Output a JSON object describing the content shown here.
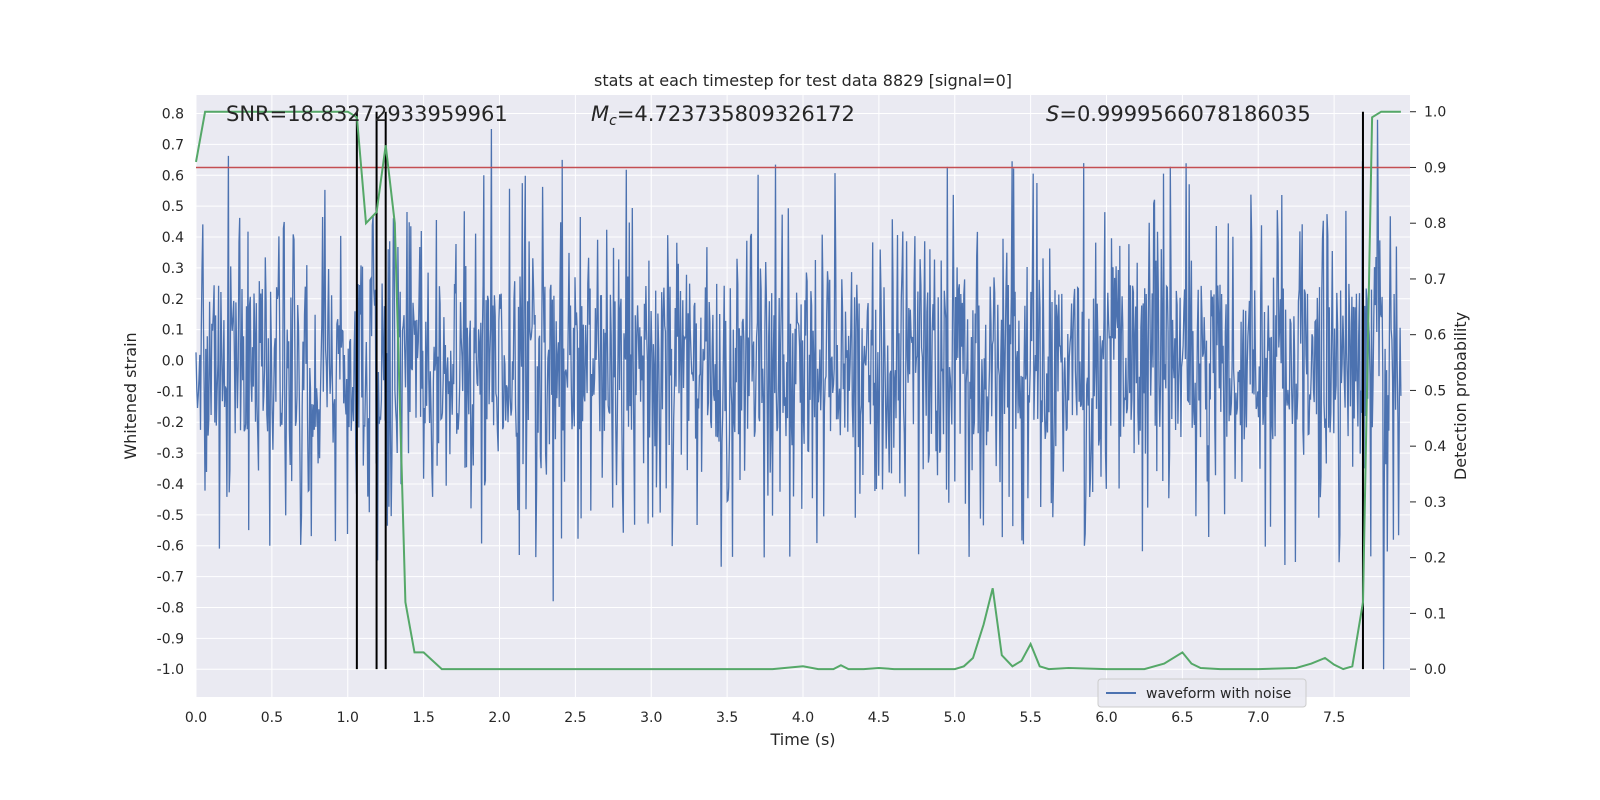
{
  "chart_data": {
    "type": "line",
    "title": "stats at each timestep for test data 8829 [signal=0]",
    "xlabel": "Time (s)",
    "ylabel": "Whitened strain",
    "y2label": "Detection probability",
    "xlim": [
      0.0,
      8.0
    ],
    "ylim": [
      -1.09,
      0.86
    ],
    "y2lim": [
      -0.05,
      1.03
    ],
    "xticks": [
      "0.0",
      "0.5",
      "1.0",
      "1.5",
      "2.0",
      "2.5",
      "3.0",
      "3.5",
      "4.0",
      "4.5",
      "5.0",
      "5.5",
      "6.0",
      "6.5",
      "7.0",
      "7.5"
    ],
    "xtick_values": [
      0.0,
      0.5,
      1.0,
      1.5,
      2.0,
      2.5,
      3.0,
      3.5,
      4.0,
      4.5,
      5.0,
      5.5,
      6.0,
      6.5,
      7.0,
      7.5
    ],
    "yticks": [
      "0.8",
      "0.7",
      "0.6",
      "0.5",
      "0.4",
      "0.3",
      "0.2",
      "0.1",
      "0.0",
      "-0.1",
      "-0.2",
      "-0.3",
      "-0.4",
      "-0.5",
      "-0.6",
      "-0.7",
      "-0.8",
      "-0.9",
      "-1.0"
    ],
    "ytick_values": [
      0.8,
      0.7,
      0.6,
      0.5,
      0.4,
      0.3,
      0.2,
      0.1,
      0.0,
      -0.1,
      -0.2,
      -0.3,
      -0.4,
      -0.5,
      -0.6,
      -0.7,
      -0.8,
      -0.9,
      -1.0
    ],
    "y2ticks": [
      "1.0",
      "0.9",
      "0.8",
      "0.7",
      "0.6",
      "0.5",
      "0.4",
      "0.3",
      "0.2",
      "0.1",
      "0.0"
    ],
    "y2tick_values": [
      1.0,
      0.9,
      0.8,
      0.7,
      0.6,
      0.5,
      0.4,
      0.3,
      0.2,
      0.1,
      0.0
    ],
    "annotations": {
      "snr": "SNR=18.83272933959961",
      "mc_symbol": "M",
      "mc_subscript": "c",
      "mc_value": "=4.723735809326172",
      "s_symbol": "S",
      "s_value": "=0.9999566078186035"
    },
    "threshold": 0.9,
    "vertical_lines": [
      1.06,
      1.19,
      1.25,
      7.69
    ],
    "waveform": {
      "name": "waveform with noise",
      "sample_count": 1600,
      "envelope_core": 0.25,
      "typical_peak": 0.45,
      "max": 0.78,
      "min": -1.0
    },
    "detection_probability": {
      "name": "detection probability",
      "x": [
        0.0,
        0.06,
        0.5,
        1.0,
        1.06,
        1.12,
        1.19,
        1.25,
        1.31,
        1.38,
        1.44,
        1.5,
        1.62,
        1.75,
        2.0,
        2.5,
        3.0,
        3.5,
        3.8,
        4.0,
        4.1,
        4.2,
        4.25,
        4.3,
        4.4,
        4.5,
        4.6,
        4.8,
        5.0,
        5.06,
        5.12,
        5.19,
        5.25,
        5.31,
        5.38,
        5.44,
        5.5,
        5.56,
        5.62,
        5.75,
        6.0,
        6.25,
        6.38,
        6.5,
        6.56,
        6.62,
        6.75,
        7.0,
        7.25,
        7.35,
        7.44,
        7.5,
        7.56,
        7.62,
        7.69,
        7.75,
        7.81,
        7.88,
        7.94
      ],
      "y": [
        0.91,
        1.0,
        1.0,
        1.0,
        0.99,
        0.8,
        0.82,
        0.94,
        0.8,
        0.12,
        0.03,
        0.03,
        0.0,
        0.0,
        0.0,
        0.0,
        0.0,
        0.0,
        0.0,
        0.005,
        0.0,
        0.0,
        0.007,
        0.0,
        0.0,
        0.002,
        0.0,
        0.0,
        0.0,
        0.005,
        0.02,
        0.08,
        0.145,
        0.025,
        0.005,
        0.015,
        0.045,
        0.005,
        0.0,
        0.002,
        0.0,
        0.0,
        0.01,
        0.03,
        0.01,
        0.002,
        0.0,
        0.0,
        0.002,
        0.01,
        0.02,
        0.008,
        0.0,
        0.005,
        0.12,
        0.99,
        1.0,
        1.0,
        1.0
      ]
    },
    "legend": {
      "label": "waveform with noise",
      "position": "lower right"
    },
    "colors": {
      "waveform": "#4c72b0",
      "probability": "#55a868",
      "threshold": "#c44e52",
      "vlines": "#000000",
      "axes_bg": "#eaeaf2",
      "grid": "#ffffff"
    }
  }
}
